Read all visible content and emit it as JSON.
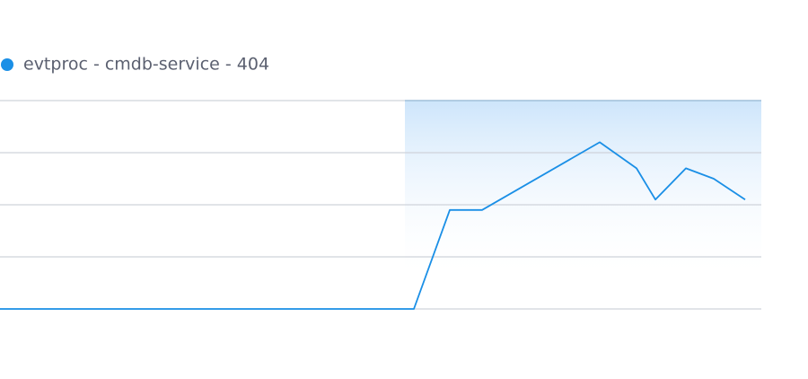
{
  "chart_data": {
    "type": "line",
    "series": [
      {
        "name": "evtproc - cmdb-service - 404",
        "color": "#1a8fe6",
        "x": [
          0,
          461,
          501,
          537,
          668,
          709,
          730,
          764,
          795,
          830
        ],
        "values": [
          0,
          0,
          1.9,
          1.9,
          3.2,
          2.7,
          2.1,
          2.7,
          2.5,
          2.1
        ]
      }
    ],
    "xlim": [
      0,
      848
    ],
    "ylim": [
      0,
      4
    ],
    "yticks": [
      0,
      1,
      2,
      3,
      4
    ],
    "grid": true,
    "show_tick_labels": false,
    "legend": "top-left",
    "highlight": {
      "x": [
        451,
        848
      ],
      "color": "#1a8fe6"
    }
  }
}
